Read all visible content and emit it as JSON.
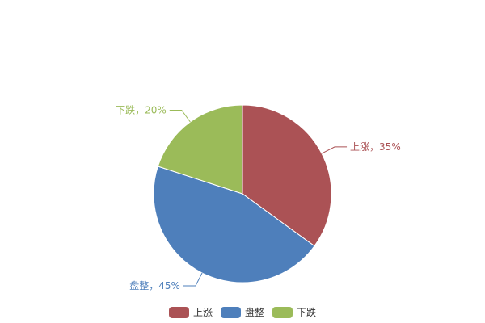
{
  "chart_data": {
    "type": "pie",
    "title": "",
    "slices": [
      {
        "name": "上涨",
        "value": 35,
        "label": "上涨，35%",
        "color": "#ab5255"
      },
      {
        "name": "盘整",
        "value": 45,
        "label": "盘整，45%",
        "color": "#4e7fbb"
      },
      {
        "name": "下跌",
        "value": 20,
        "label": "下跌，20%",
        "color": "#9bbb59"
      }
    ],
    "start_angle": "top, clockwise",
    "legend_placement": "bottom-center"
  }
}
